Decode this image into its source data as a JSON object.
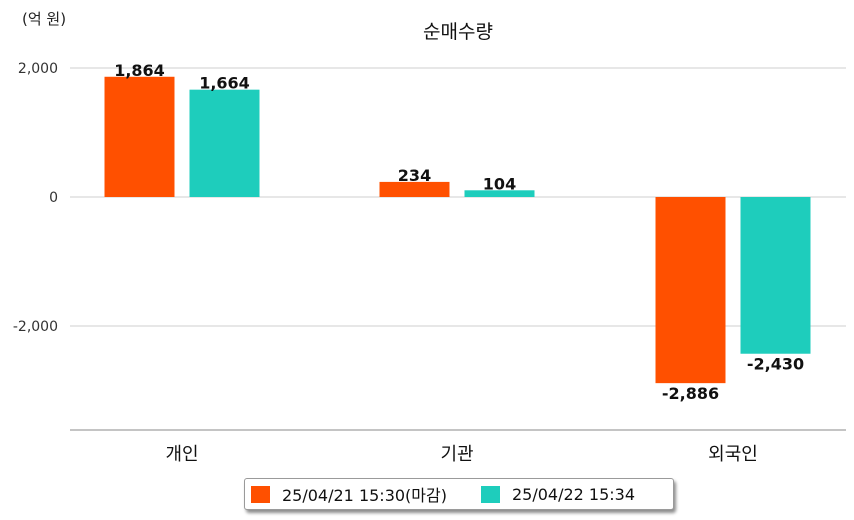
{
  "chart_data": {
    "type": "bar",
    "title": "순매수량",
    "unit_label": "(억 원)",
    "categories": [
      "개인",
      "기관",
      "외국인"
    ],
    "series": [
      {
        "name": "25/04/21 15:30(마감)",
        "color": "#ff5000",
        "values": [
          1864,
          234,
          -2886
        ]
      },
      {
        "name": "25/04/22 15:34",
        "color": "#1ecdbc",
        "values": [
          1664,
          104,
          -2430
        ]
      }
    ],
    "value_labels": [
      [
        "1,864",
        "234",
        "-2,886"
      ],
      [
        "1,664",
        "104",
        "-2,430"
      ]
    ],
    "yticks": [
      2000,
      0,
      -2000
    ],
    "ytick_labels": [
      "2,000",
      "0",
      "-2,000"
    ],
    "ylim": [
      -3600,
      2000
    ],
    "grid": true,
    "legend_position": "bottom"
  }
}
